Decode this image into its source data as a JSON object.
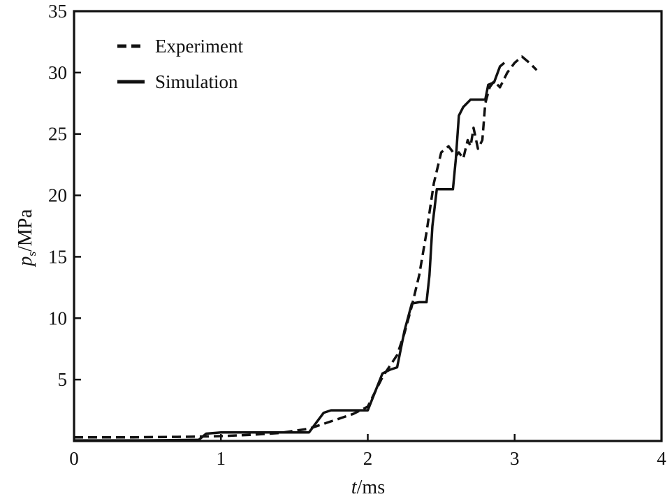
{
  "chart_data": {
    "type": "line",
    "xlabel_var": "t",
    "xlabel_unit": "/ms",
    "ylabel_var": "p",
    "ylabel_sub": "s",
    "ylabel_unit": "/MPa",
    "xlim": [
      0,
      4
    ],
    "ylim": [
      0,
      35
    ],
    "xticks": [
      0,
      1,
      2,
      3,
      4
    ],
    "yticks": [
      5,
      10,
      15,
      20,
      25,
      30,
      35
    ],
    "grid": false,
    "legend_position": "top-left",
    "series": [
      {
        "name": "Experiment",
        "style": "dashed",
        "color": "#111111",
        "x": [
          0,
          0.4,
          0.8,
          1.0,
          1.2,
          1.4,
          1.6,
          1.75,
          1.9,
          2.0,
          2.05,
          2.1,
          2.2,
          2.25,
          2.3,
          2.35,
          2.4,
          2.45,
          2.5,
          2.55,
          2.6,
          2.62,
          2.65,
          2.68,
          2.7,
          2.72,
          2.75,
          2.78,
          2.8,
          2.83,
          2.86,
          2.9,
          2.95,
          3.0,
          3.05,
          3.1,
          3.15
        ],
        "y": [
          0.3,
          0.3,
          0.35,
          0.4,
          0.5,
          0.65,
          1.0,
          1.6,
          2.2,
          2.8,
          4.0,
          5.2,
          7.0,
          8.8,
          11.0,
          13.5,
          17.0,
          21.0,
          23.5,
          24.0,
          23.2,
          23.5,
          23.0,
          24.5,
          24.0,
          25.5,
          23.8,
          24.5,
          27.5,
          28.8,
          29.3,
          28.8,
          30.0,
          30.8,
          31.3,
          30.8,
          30.2
        ]
      },
      {
        "name": "Simulation",
        "style": "solid",
        "color": "#111111",
        "x": [
          0,
          0.5,
          0.85,
          0.9,
          1.0,
          1.2,
          1.4,
          1.6,
          1.65,
          1.7,
          1.75,
          1.85,
          1.95,
          2.0,
          2.05,
          2.1,
          2.15,
          2.2,
          2.25,
          2.3,
          2.35,
          2.4,
          2.42,
          2.44,
          2.47,
          2.5,
          2.53,
          2.58,
          2.6,
          2.62,
          2.65,
          2.7,
          2.75,
          2.8,
          2.82,
          2.86,
          2.9,
          2.93
        ],
        "y": [
          0.05,
          0.05,
          0.1,
          0.6,
          0.7,
          0.7,
          0.7,
          0.7,
          1.5,
          2.3,
          2.5,
          2.5,
          2.5,
          2.5,
          4.0,
          5.5,
          5.8,
          6.0,
          9.0,
          11.2,
          11.3,
          11.3,
          13.5,
          17.5,
          20.5,
          20.5,
          20.5,
          20.5,
          23.0,
          26.5,
          27.2,
          27.8,
          27.8,
          27.8,
          29.0,
          29.2,
          30.5,
          30.8
        ]
      }
    ]
  }
}
